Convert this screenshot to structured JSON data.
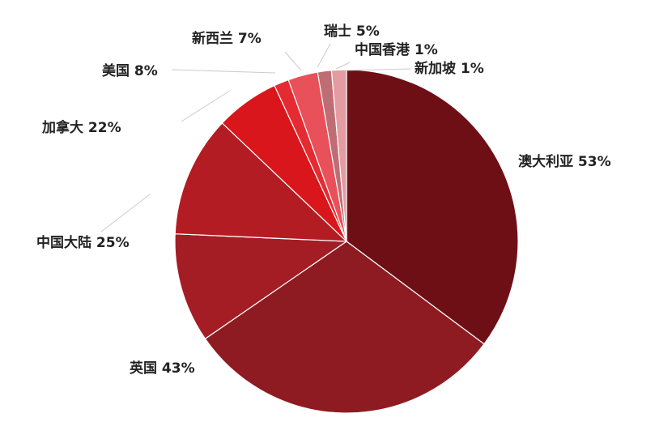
{
  "chart_data": {
    "type": "pie",
    "title": "",
    "slices": [
      {
        "label": "澳大利亚 53%",
        "name": "澳大利亚",
        "value": 53,
        "color": "#6e0f16"
      },
      {
        "label": "英国 43%",
        "name": "英国",
        "value": 43,
        "color": "#8e1b22"
      },
      {
        "label": "中国大陆 25%",
        "name": "中国大陆",
        "value": 25,
        "color": "#a41d25"
      },
      {
        "label": "加拿大 22%",
        "name": "加拿大",
        "value": 22,
        "color": "#b41c23"
      },
      {
        "label": "美国 8%",
        "name": "美国",
        "value": 8,
        "color": "#d8161c"
      },
      {
        "label": "新西兰 7%",
        "name": "新西兰",
        "value": 7,
        "color": "#e52b32"
      },
      {
        "label": "瑞士 5%",
        "name": "瑞士",
        "value": 5,
        "color": "#e8505a"
      },
      {
        "label": "中国香港 1%",
        "name": "中国香港",
        "value": 1,
        "color": "#bf6d75"
      },
      {
        "label": "新加坡 1%",
        "name": "新加坡",
        "value": 1,
        "color": "#e39ca2"
      }
    ],
    "legend": "none"
  }
}
